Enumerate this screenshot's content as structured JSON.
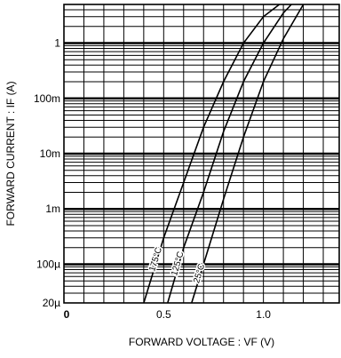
{
  "chart_data": {
    "type": "line",
    "title": "",
    "xlabel": "FORWARD VOLTAGE : VF (V)",
    "ylabel": "FORWARD CURRENT : IF (A)",
    "x_scale": "linear",
    "y_scale": "log",
    "xlim": [
      0,
      1.38
    ],
    "ylim": [
      2e-05,
      5
    ],
    "grid": true,
    "x_ticks": [
      {
        "value": 0,
        "label": "0"
      },
      {
        "value": 0.5,
        "label": "0.5"
      },
      {
        "value": 1.0,
        "label": "1.0"
      }
    ],
    "y_ticks": [
      {
        "value": 1,
        "label": "1"
      },
      {
        "value": 0.1,
        "label": "100m"
      },
      {
        "value": 0.01,
        "label": "10m"
      },
      {
        "value": 0.001,
        "label": "1m"
      },
      {
        "value": 0.0001,
        "label": "100µ"
      },
      {
        "value": 2e-05,
        "label": "20µ"
      }
    ],
    "series": [
      {
        "name": "175°C",
        "points": [
          [
            0.4,
            2e-05
          ],
          [
            0.5,
            0.0003
          ],
          [
            0.6,
            0.003
          ],
          [
            0.7,
            0.03
          ],
          [
            0.8,
            0.2
          ],
          [
            0.9,
            1.0
          ],
          [
            1.0,
            3.0
          ],
          [
            1.08,
            5.0
          ]
        ]
      },
      {
        "name": "125°C",
        "points": [
          [
            0.52,
            2e-05
          ],
          [
            0.6,
            0.0002
          ],
          [
            0.7,
            0.002
          ],
          [
            0.8,
            0.025
          ],
          [
            0.9,
            0.2
          ],
          [
            1.0,
            1.0
          ],
          [
            1.1,
            3.5
          ],
          [
            1.14,
            5.0
          ]
        ]
      },
      {
        "name": "25°C",
        "points": [
          [
            0.64,
            2e-05
          ],
          [
            0.7,
            0.0001
          ],
          [
            0.8,
            0.0015
          ],
          [
            0.9,
            0.02
          ],
          [
            1.0,
            0.2
          ],
          [
            1.1,
            1.2
          ],
          [
            1.2,
            5.0
          ]
        ]
      }
    ]
  }
}
